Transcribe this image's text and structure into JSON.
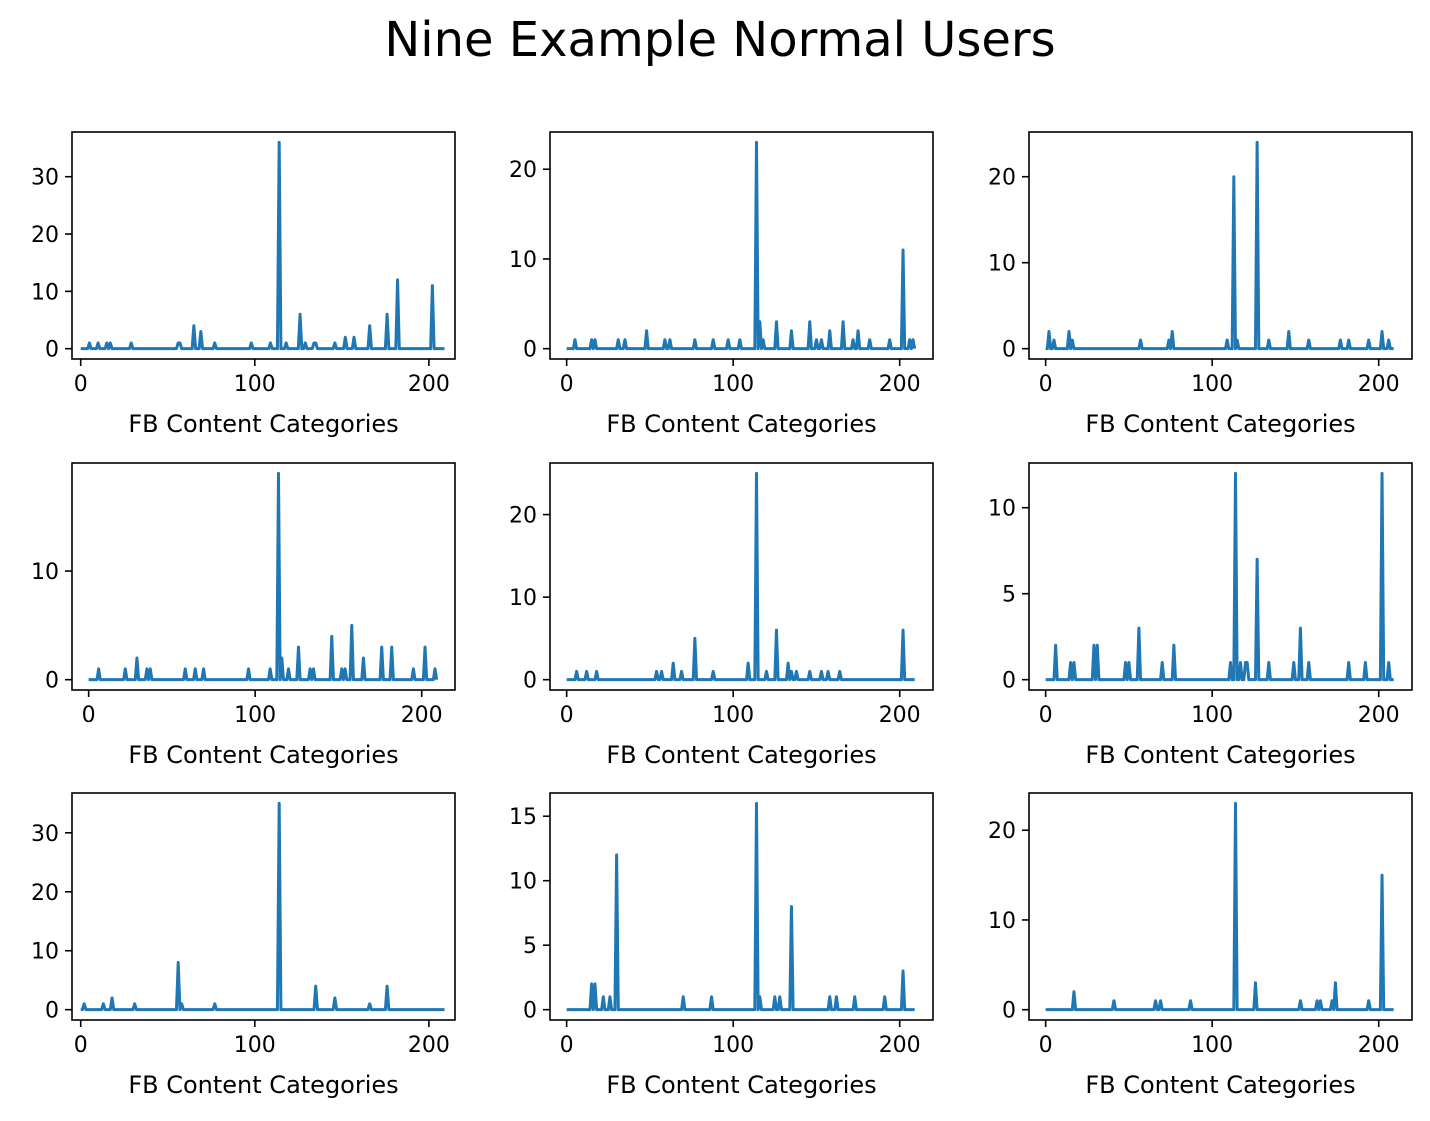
{
  "title": "Nine Example Normal Users",
  "colors": {
    "line": "#1f77b4",
    "axes": "#000000",
    "background": "#ffffff"
  },
  "chart_data": [
    {
      "type": "line",
      "xlabel": "FB Content Categories",
      "xlim": [
        -5,
        215
      ],
      "ylim": [
        -1.8,
        37.8
      ],
      "xticks": [
        0,
        100,
        200
      ],
      "yticks": [
        0,
        10,
        20,
        30
      ],
      "series": [
        {
          "peaks": [
            [
              5,
              1
            ],
            [
              10,
              1
            ],
            [
              15,
              1
            ],
            [
              17,
              1
            ],
            [
              29,
              1
            ],
            [
              56,
              1
            ],
            [
              57,
              1
            ],
            [
              65,
              4
            ],
            [
              69,
              3
            ],
            [
              77,
              1
            ],
            [
              98,
              1
            ],
            [
              109,
              1
            ],
            [
              114,
              36
            ],
            [
              118,
              1
            ],
            [
              126,
              6
            ],
            [
              129,
              1
            ],
            [
              134,
              1
            ],
            [
              135,
              1
            ],
            [
              146,
              1
            ],
            [
              152,
              2
            ],
            [
              157,
              2
            ],
            [
              166,
              4
            ],
            [
              176,
              6
            ],
            [
              182,
              12
            ],
            [
              202,
              11
            ]
          ]
        }
      ]
    },
    {
      "type": "line",
      "xlabel": "FB Content Categories",
      "xlim": [
        -10,
        220
      ],
      "ylim": [
        -1.15,
        24.15
      ],
      "xticks": [
        0,
        100,
        200
      ],
      "yticks": [
        0,
        10,
        20
      ],
      "series": [
        {
          "peaks": [
            [
              5,
              1
            ],
            [
              15,
              1
            ],
            [
              17,
              1
            ],
            [
              31,
              1
            ],
            [
              35,
              1
            ],
            [
              48,
              2
            ],
            [
              59,
              1
            ],
            [
              62,
              1
            ],
            [
              77,
              1
            ],
            [
              88,
              1
            ],
            [
              97,
              1
            ],
            [
              104,
              1
            ],
            [
              114,
              23
            ],
            [
              116,
              3
            ],
            [
              118,
              1
            ],
            [
              126,
              3
            ],
            [
              135,
              2
            ],
            [
              146,
              3
            ],
            [
              150,
              1
            ],
            [
              153,
              1
            ],
            [
              158,
              2
            ],
            [
              166,
              3
            ],
            [
              172,
              1
            ],
            [
              175,
              2
            ],
            [
              182,
              1
            ],
            [
              194,
              1
            ],
            [
              202,
              11
            ],
            [
              206,
              1
            ],
            [
              208,
              1
            ]
          ]
        }
      ]
    },
    {
      "type": "line",
      "xlabel": "FB Content Categories",
      "xlim": [
        -10,
        220
      ],
      "ylim": [
        -1.2,
        25.2
      ],
      "xticks": [
        0,
        100,
        200
      ],
      "yticks": [
        0,
        10,
        20
      ],
      "series": [
        {
          "peaks": [
            [
              2,
              2
            ],
            [
              5,
              1
            ],
            [
              14,
              2
            ],
            [
              16,
              1
            ],
            [
              57,
              1
            ],
            [
              74,
              1
            ],
            [
              76,
              2
            ],
            [
              109,
              1
            ],
            [
              113,
              20
            ],
            [
              115,
              1
            ],
            [
              127,
              24
            ],
            [
              134,
              1
            ],
            [
              146,
              2
            ],
            [
              158,
              1
            ],
            [
              177,
              1
            ],
            [
              182,
              1
            ],
            [
              194,
              1
            ],
            [
              202,
              2
            ],
            [
              206,
              1
            ]
          ]
        }
      ]
    },
    {
      "type": "line",
      "xlabel": "FB Content Categories",
      "xlim": [
        -10,
        220
      ],
      "ylim": [
        -0.95,
        19.95
      ],
      "xticks": [
        0,
        100,
        200
      ],
      "yticks": [
        0,
        10
      ],
      "series": [
        {
          "peaks": [
            [
              6,
              1
            ],
            [
              22,
              1
            ],
            [
              29,
              2
            ],
            [
              35,
              1
            ],
            [
              37,
              1
            ],
            [
              58,
              1
            ],
            [
              64,
              1
            ],
            [
              69,
              1
            ],
            [
              96,
              1
            ],
            [
              109,
              1
            ],
            [
              114,
              19
            ],
            [
              116,
              2
            ],
            [
              120,
              1
            ],
            [
              126,
              3
            ],
            [
              133,
              1
            ],
            [
              135,
              1
            ],
            [
              146,
              4
            ],
            [
              152,
              1
            ],
            [
              154,
              1
            ],
            [
              158,
              5
            ],
            [
              165,
              2
            ],
            [
              176,
              3
            ],
            [
              182,
              3
            ],
            [
              195,
              1
            ],
            [
              202,
              3
            ],
            [
              208,
              1
            ]
          ]
        }
      ]
    },
    {
      "type": "line",
      "xlabel": "FB Content Categories",
      "xlim": [
        -10,
        220
      ],
      "ylim": [
        -1.25,
        26.25
      ],
      "xticks": [
        0,
        100,
        200
      ],
      "yticks": [
        0,
        10,
        20
      ],
      "series": [
        {
          "peaks": [
            [
              6,
              1
            ],
            [
              12,
              1
            ],
            [
              18,
              1
            ],
            [
              54,
              1
            ],
            [
              57,
              1
            ],
            [
              64,
              2
            ],
            [
              69,
              1
            ],
            [
              77,
              5
            ],
            [
              88,
              1
            ],
            [
              109,
              2
            ],
            [
              114,
              25
            ],
            [
              120,
              1
            ],
            [
              126,
              6
            ],
            [
              133,
              2
            ],
            [
              135,
              1
            ],
            [
              138,
              1
            ],
            [
              146,
              1
            ],
            [
              153,
              1
            ],
            [
              157,
              1
            ],
            [
              164,
              1
            ],
            [
              202,
              6
            ]
          ]
        }
      ]
    },
    {
      "type": "line",
      "xlabel": "FB Content Categories",
      "xlim": [
        -10,
        220
      ],
      "ylim": [
        -0.6,
        12.6
      ],
      "xticks": [
        0,
        100,
        200
      ],
      "yticks": [
        0,
        5,
        10
      ],
      "series": [
        {
          "peaks": [
            [
              6,
              2
            ],
            [
              15,
              1
            ],
            [
              17,
              1
            ],
            [
              29,
              2
            ],
            [
              31,
              2
            ],
            [
              48,
              1
            ],
            [
              50,
              1
            ],
            [
              56,
              3
            ],
            [
              70,
              1
            ],
            [
              77,
              2
            ],
            [
              111,
              1
            ],
            [
              114,
              12
            ],
            [
              117,
              1
            ],
            [
              120,
              1
            ],
            [
              121,
              1
            ],
            [
              127,
              7
            ],
            [
              134,
              1
            ],
            [
              149,
              1
            ],
            [
              153,
              3
            ],
            [
              158,
              1
            ],
            [
              182,
              1
            ],
            [
              192,
              1
            ],
            [
              202,
              12
            ],
            [
              206,
              1
            ]
          ]
        }
      ]
    },
    {
      "type": "line",
      "xlabel": "FB Content Categories",
      "xlim": [
        -5,
        215
      ],
      "ylim": [
        -1.75,
        36.75
      ],
      "xticks": [
        0,
        100,
        200
      ],
      "yticks": [
        0,
        10,
        20,
        30
      ],
      "series": [
        {
          "peaks": [
            [
              2,
              1
            ],
            [
              13,
              1
            ],
            [
              18,
              2
            ],
            [
              31,
              1
            ],
            [
              56,
              8
            ],
            [
              58,
              1
            ],
            [
              77,
              1
            ],
            [
              114,
              35
            ],
            [
              135,
              4
            ],
            [
              146,
              2
            ],
            [
              166,
              1
            ],
            [
              176,
              4
            ]
          ]
        }
      ]
    },
    {
      "type": "line",
      "xlabel": "FB Content Categories",
      "xlim": [
        -10,
        220
      ],
      "ylim": [
        -0.8,
        16.8
      ],
      "xticks": [
        0,
        100,
        200
      ],
      "yticks": [
        0,
        5,
        10,
        15
      ],
      "series": [
        {
          "peaks": [
            [
              15,
              2
            ],
            [
              17,
              2
            ],
            [
              22,
              1
            ],
            [
              26,
              1
            ],
            [
              30,
              12
            ],
            [
              70,
              1
            ],
            [
              87,
              1
            ],
            [
              114,
              16
            ],
            [
              116,
              1
            ],
            [
              125,
              1
            ],
            [
              128,
              1
            ],
            [
              135,
              8
            ],
            [
              158,
              1
            ],
            [
              162,
              1
            ],
            [
              173,
              1
            ],
            [
              191,
              1
            ],
            [
              202,
              3
            ]
          ]
        }
      ]
    },
    {
      "type": "line",
      "xlabel": "FB Content Categories",
      "xlim": [
        -10,
        220
      ],
      "ylim": [
        -1.15,
        24.15
      ],
      "xticks": [
        0,
        100,
        200
      ],
      "yticks": [
        0,
        10,
        20
      ],
      "series": [
        {
          "peaks": [
            [
              17,
              2
            ],
            [
              41,
              1
            ],
            [
              66,
              1
            ],
            [
              69,
              1
            ],
            [
              87,
              1
            ],
            [
              114,
              23
            ],
            [
              126,
              3
            ],
            [
              153,
              1
            ],
            [
              163,
              1
            ],
            [
              165,
              1
            ],
            [
              172,
              1
            ],
            [
              174,
              3
            ],
            [
              194,
              1
            ],
            [
              202,
              15
            ]
          ]
        }
      ]
    }
  ]
}
